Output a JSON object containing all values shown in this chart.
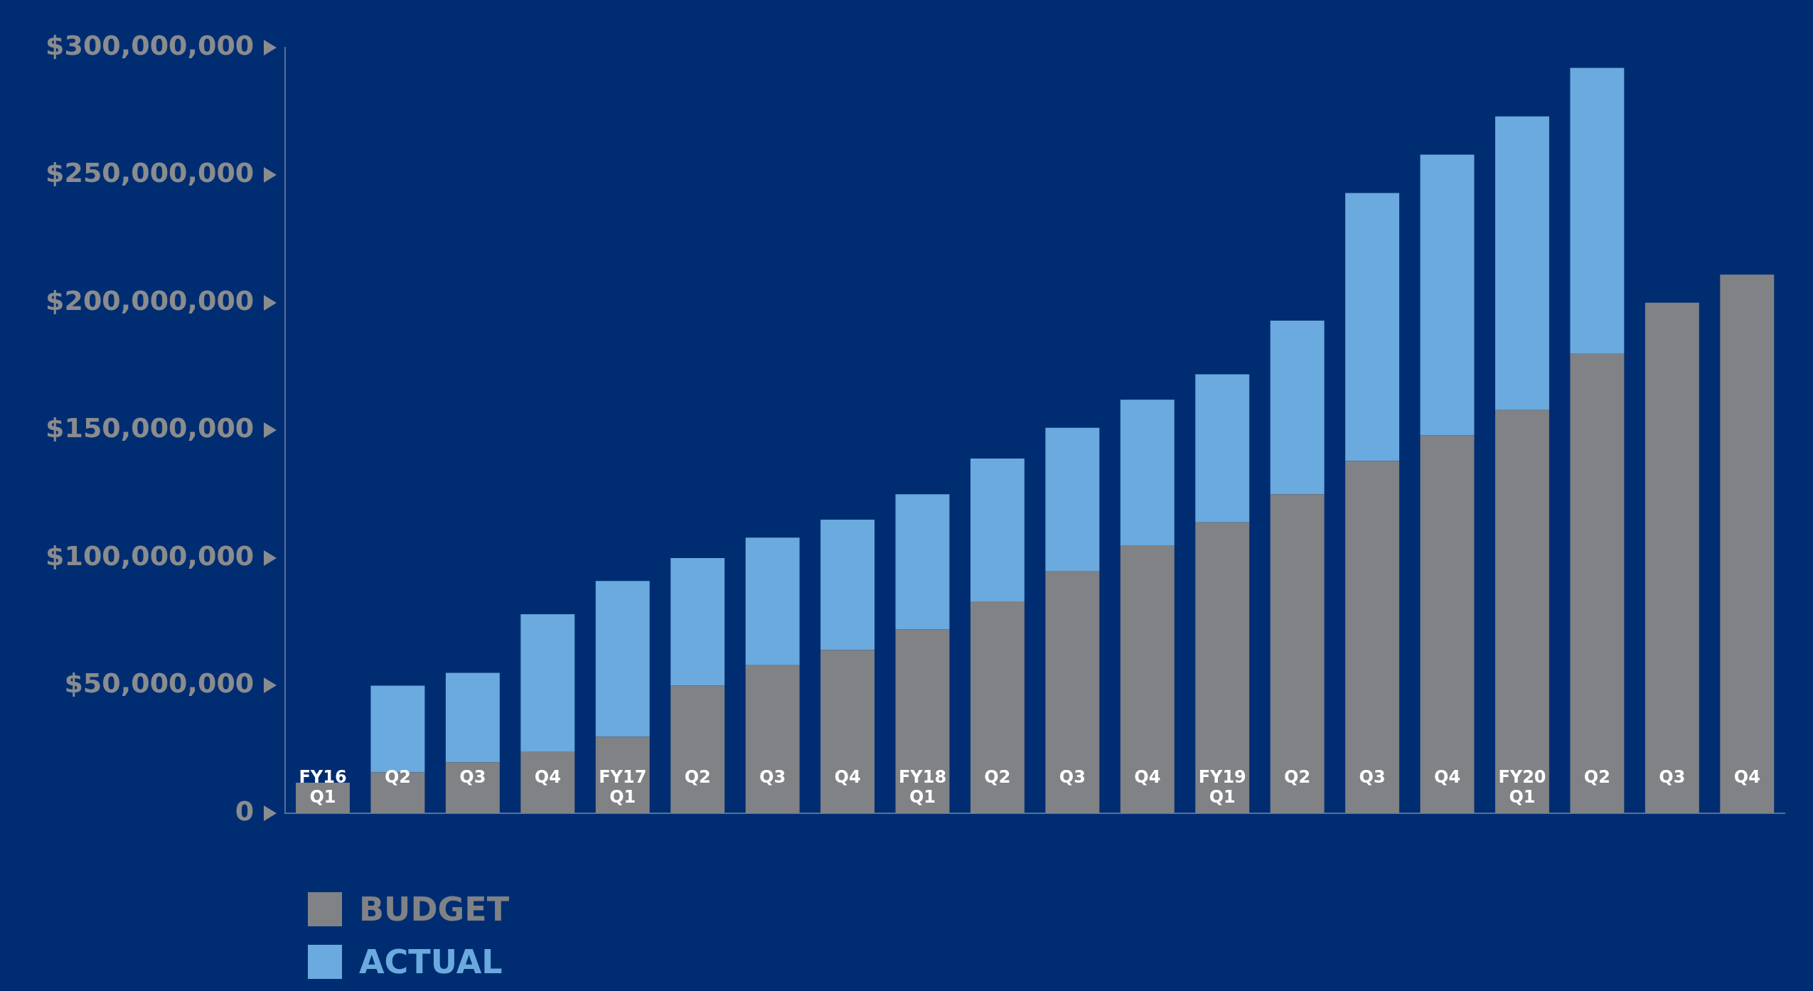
{
  "chart_data": {
    "type": "bar",
    "stacked": true,
    "categories": [
      "FY16 Q1",
      "Q2",
      "Q3",
      "Q4",
      "FY17 Q1",
      "Q2",
      "Q3",
      "Q4",
      "FY18 Q1",
      "Q2",
      "Q3",
      "Q4",
      "FY19 Q1",
      "Q2",
      "Q3",
      "Q4",
      "FY20 Q1",
      "Q2",
      "Q3",
      "Q4"
    ],
    "series": [
      {
        "name": "BUDGET",
        "color": "#808285",
        "values": [
          12000000,
          16000000,
          20000000,
          24000000,
          30000000,
          50000000,
          58000000,
          64000000,
          72000000,
          83000000,
          95000000,
          105000000,
          114000000,
          125000000,
          138000000,
          148000000,
          158000000,
          180000000,
          200000000,
          211000000
        ]
      },
      {
        "name": "ACTUAL",
        "color": "#6aaade",
        "values": [
          null,
          34000000,
          35000000,
          54000000,
          61000000,
          50000000,
          50000000,
          51000000,
          53000000,
          56000000,
          56000000,
          57000000,
          58000000,
          68000000,
          105000000,
          110000000,
          115000000,
          112000000,
          null,
          null
        ]
      }
    ],
    "ylim": [
      0,
      300000000
    ],
    "yticks": [
      {
        "value": 0,
        "label": "0"
      },
      {
        "value": 50000000,
        "label": "$50,000,000"
      },
      {
        "value": 100000000,
        "label": "$100,000,000"
      },
      {
        "value": 150000000,
        "label": "$150,000,000"
      },
      {
        "value": 200000000,
        "label": "$200,000,000"
      },
      {
        "value": 250000000,
        "label": "$250,000,000"
      },
      {
        "value": 300000000,
        "label": "$300,000,000"
      }
    ],
    "grid": false,
    "legend": "bottom left"
  }
}
